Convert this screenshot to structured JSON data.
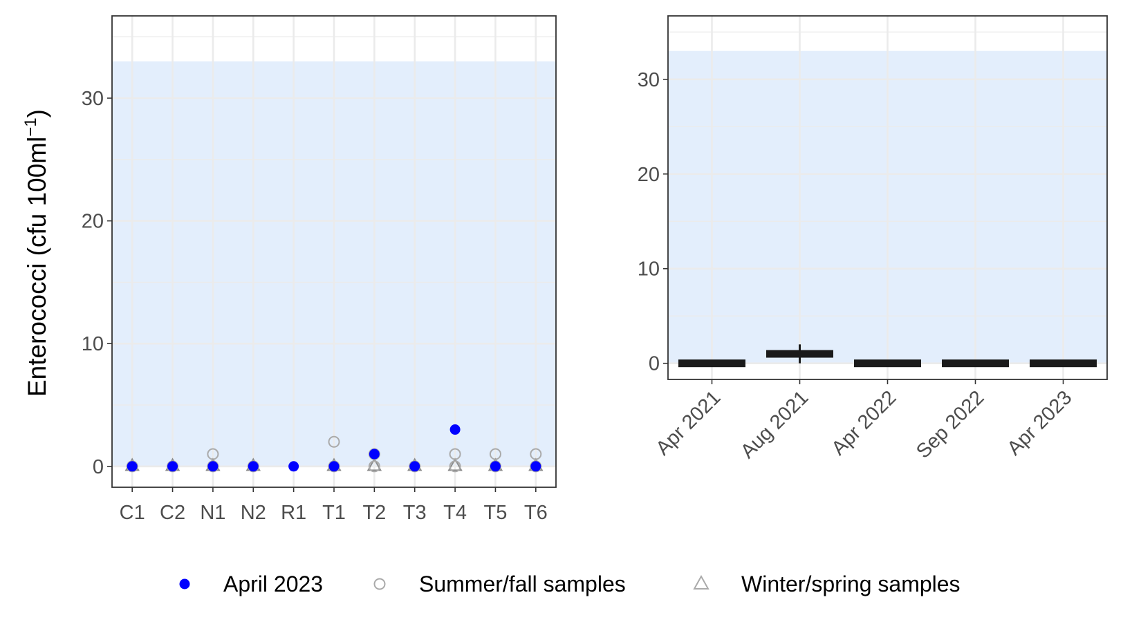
{
  "colors": {
    "april2023": "#0000ff",
    "summer": "#aaaaaa",
    "winter": "#8c8c8c",
    "band": "#e3eefc",
    "grid": "#ebebeb",
    "box": "#1a1a1a"
  },
  "legend": {
    "items": [
      {
        "label": "April 2023",
        "shape": "filled-circle"
      },
      {
        "label": "Summer/fall samples",
        "shape": "open-circle"
      },
      {
        "label": "Winter/spring samples",
        "shape": "open-triangle"
      }
    ]
  },
  "chart_data": [
    {
      "type": "scatter",
      "title": "",
      "ylabel": "Enterococci (cfu 100ml",
      "ylabel_sup": "−1",
      "ylabel_close": ")",
      "ylim": [
        -1.7,
        36.7
      ],
      "yticks": [
        0,
        10,
        20,
        30
      ],
      "ytick_labels": [
        "0",
        "10",
        "20",
        "30"
      ],
      "band": [
        0,
        33
      ],
      "categories": [
        "C1",
        "C2",
        "N1",
        "N2",
        "R1",
        "T1",
        "T2",
        "T3",
        "T4",
        "T5",
        "T6"
      ],
      "series": [
        {
          "name": "April 2023",
          "values": [
            0,
            0,
            0,
            0,
            0,
            0,
            1,
            0,
            3,
            0,
            0
          ]
        },
        {
          "name": "Summer/fall samples",
          "points": [
            [
              "C1",
              0
            ],
            [
              "C2",
              0
            ],
            [
              "N1",
              1
            ],
            [
              "N1",
              0
            ],
            [
              "N2",
              0
            ],
            [
              "T1",
              2
            ],
            [
              "T1",
              0
            ],
            [
              "T2",
              1
            ],
            [
              "T2",
              0
            ],
            [
              "T3",
              0
            ],
            [
              "T4",
              1
            ],
            [
              "T4",
              0
            ],
            [
              "T5",
              1
            ],
            [
              "T5",
              0
            ],
            [
              "T6",
              1
            ],
            [
              "T6",
              0
            ]
          ]
        },
        {
          "name": "Winter/spring samples",
          "points": [
            [
              "C1",
              0
            ],
            [
              "C2",
              0
            ],
            [
              "N1",
              0
            ],
            [
              "N2",
              0
            ],
            [
              "T1",
              0
            ],
            [
              "T2",
              0
            ],
            [
              "T3",
              0
            ],
            [
              "T4",
              0
            ],
            [
              "T5",
              0
            ],
            [
              "T6",
              0
            ]
          ]
        }
      ]
    },
    {
      "type": "box",
      "title": "",
      "ylim": [
        -1.7,
        36.7
      ],
      "yticks": [
        0,
        10,
        20,
        30
      ],
      "ytick_labels": [
        "0",
        "10",
        "20",
        "30"
      ],
      "band": [
        0,
        33
      ],
      "categories": [
        "Apr 2021",
        "Aug 2021",
        "Apr 2022",
        "Sep 2022",
        "Apr 2023"
      ],
      "boxes": [
        {
          "category": "Apr 2021",
          "min": 0,
          "q1": 0,
          "median": 0,
          "q3": 0,
          "max": 0
        },
        {
          "category": "Aug 2021",
          "min": 0,
          "q1": 1,
          "median": 1,
          "q3": 1,
          "max": 2
        },
        {
          "category": "Apr 2022",
          "min": 0,
          "q1": 0,
          "median": 0,
          "q3": 0,
          "max": 0
        },
        {
          "category": "Sep 2022",
          "min": 0,
          "q1": 0,
          "median": 0,
          "q3": 0,
          "max": 0
        },
        {
          "category": "Apr 2023",
          "min": 0,
          "q1": 0,
          "median": 0,
          "q3": 0,
          "max": 0
        }
      ]
    }
  ]
}
